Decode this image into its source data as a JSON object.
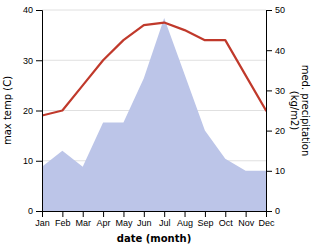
{
  "chart_data": {
    "type": "line",
    "categories": [
      "Jan",
      "Feb",
      "Mar",
      "Apr",
      "May",
      "Jun",
      "Jul",
      "Aug",
      "Sep",
      "Oct",
      "Nov",
      "Dec"
    ],
    "series": [
      {
        "type": "area",
        "axis": "y2",
        "color": "#bcc5e8",
        "values": [
          11,
          15,
          11,
          22,
          22,
          33,
          48,
          34,
          20,
          13,
          10,
          10
        ]
      },
      {
        "type": "line",
        "color": "#c0392b",
        "values": [
          19,
          20,
          25,
          30,
          34,
          37,
          37.5,
          36,
          34,
          34,
          27,
          20
        ]
      }
    ],
    "xlabel": "date (month)",
    "ylabel": "max temp (C)",
    "y2label": "med. precipitation\n(kg/m2)",
    "ylim": [
      0,
      40
    ],
    "yticks": [
      0,
      10,
      20,
      30,
      40
    ],
    "y2lim": [
      0,
      50
    ],
    "y2ticks": [
      0,
      10,
      20,
      30,
      40,
      50
    ],
    "grid": true
  }
}
